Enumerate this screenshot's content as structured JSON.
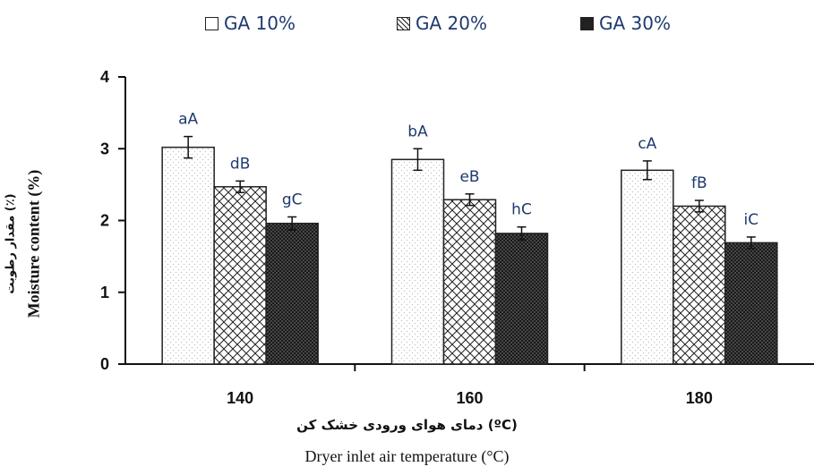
{
  "chart_data": {
    "type": "bar",
    "categories": [
      "140",
      "160",
      "180"
    ],
    "series": [
      {
        "name": "GA 10%",
        "values": [
          3.02,
          2.85,
          2.7
        ],
        "errors": [
          0.15,
          0.15,
          0.13
        ],
        "labels": [
          "aA",
          "bA",
          "cA"
        ],
        "pattern": "dotted"
      },
      {
        "name": "GA 20%",
        "values": [
          2.47,
          2.29,
          2.2
        ],
        "errors": [
          0.08,
          0.08,
          0.08
        ],
        "labels": [
          "dB",
          "eB",
          "fB"
        ],
        "pattern": "crosshatch"
      },
      {
        "name": "GA 30%",
        "values": [
          1.96,
          1.82,
          1.69
        ],
        "errors": [
          0.09,
          0.09,
          0.08
        ],
        "labels": [
          "gC",
          "hC",
          "iC"
        ],
        "pattern": "dense-dotted-dark"
      }
    ],
    "xlabel_fa": "دمای هوای ورودی خشک کن (ºC)",
    "xlabel_en": "Dryer inlet air temperature (°C)",
    "ylabel_fa": "مقدار رطوبت (٪)",
    "ylabel_en": "Moisture content (%)",
    "ylim": [
      0,
      4
    ],
    "yticks": [
      "0",
      "1",
      "2",
      "3",
      "4"
    ],
    "grid": false,
    "legend_position": "top",
    "colors": {
      "label_text": "#1f3a6e",
      "bar_outline": "#222222",
      "axis": "#111111"
    }
  }
}
